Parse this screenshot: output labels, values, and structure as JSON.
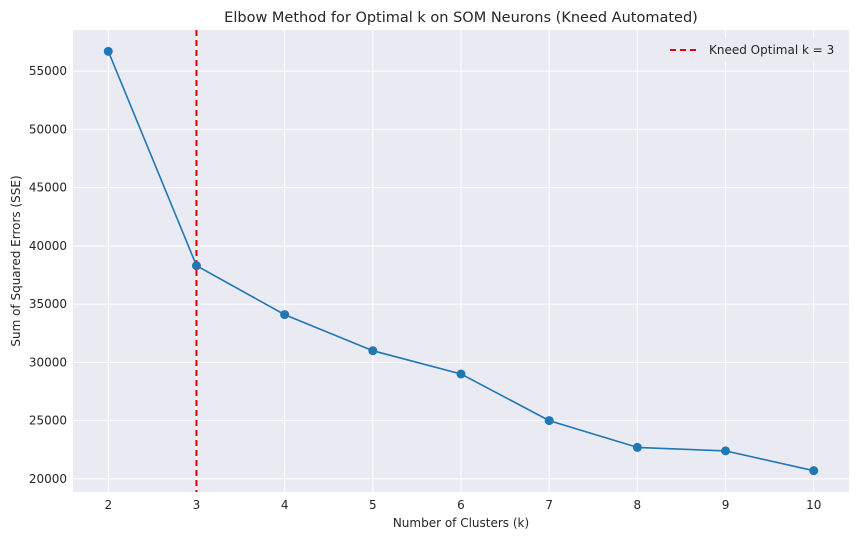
{
  "chart_data": {
    "type": "line",
    "title": "Elbow Method for Optimal k on SOM Neurons (Kneed Automated)",
    "xlabel": "Number of Clusters (k)",
    "ylabel": "Sum of Squared Errors (SSE)",
    "x": [
      2,
      3,
      4,
      5,
      6,
      7,
      8,
      9,
      10
    ],
    "series": [
      {
        "values": [
          56700,
          38300,
          34100,
          31000,
          29000,
          25000,
          22700,
          22400,
          20700
        ],
        "color": "#1f77b4"
      }
    ],
    "vline": {
      "x": 3,
      "label": "Kneed Optimal k = 3",
      "color": "#e00000",
      "style": "dashed"
    },
    "xlim": [
      1.6,
      10.4
    ],
    "ylim": [
      18870,
      58530
    ],
    "xticks": [
      "2",
      "3",
      "4",
      "5",
      "6",
      "7",
      "8",
      "9",
      "10"
    ],
    "yticks": [
      "20000",
      "25000",
      "30000",
      "35000",
      "40000",
      "45000",
      "50000",
      "55000"
    ],
    "grid": true,
    "legend_position": "top-right",
    "background": "#eaeaf2"
  }
}
